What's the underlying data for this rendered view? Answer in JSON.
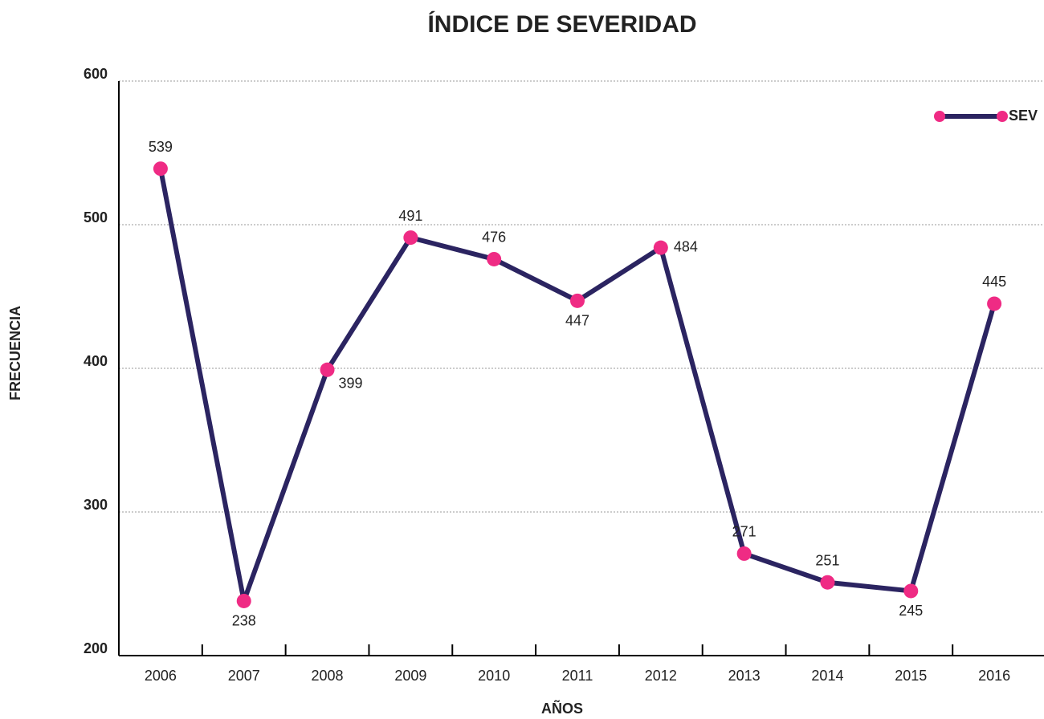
{
  "chart_data": {
    "type": "line",
    "title": "ÍNDICE DE SEVERIDAD",
    "x_label": "AÑOS",
    "y_label": "FRECUENCIA",
    "categories": [
      "2006",
      "2007",
      "2008",
      "2009",
      "2010",
      "2011",
      "2012",
      "2013",
      "2014",
      "2015",
      "2016"
    ],
    "series": [
      {
        "name": "SEV",
        "color": "#2b2461",
        "marker_color": "#ef2b84",
        "values": [
          539,
          238,
          399,
          491,
          476,
          447,
          484,
          271,
          251,
          245,
          445
        ]
      }
    ],
    "ylim": [
      200,
      600
    ],
    "yticks": [
      200,
      300,
      400,
      500,
      600
    ],
    "grid": true,
    "legend": "upper right"
  }
}
